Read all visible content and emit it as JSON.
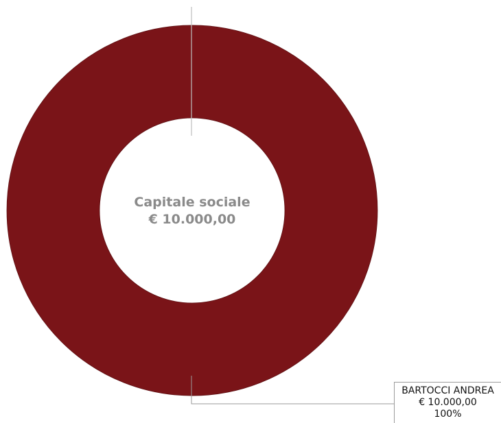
{
  "chart_data": {
    "type": "pie",
    "variant": "donut",
    "center_label": {
      "title": "Capitale sociale",
      "total": "€ 10.000,00"
    },
    "series": [
      {
        "name": "BARTOCCI ANDREA",
        "value": 10000,
        "value_label": "€ 10.000,00",
        "percent_label": "100%",
        "color": "#7a1418"
      }
    ],
    "legend": "none",
    "center_text_color": "#8a8a8a"
  }
}
